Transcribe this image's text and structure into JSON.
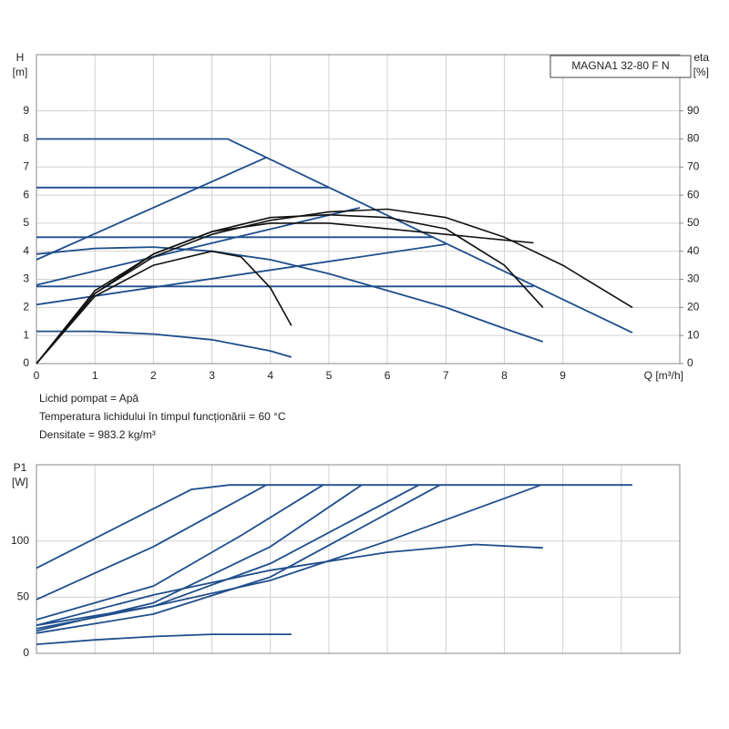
{
  "chart_data": [
    {
      "type": "line",
      "title": "MAGNA1 32-80 F N",
      "ylabel": "H",
      "yunit": "[m]",
      "y2label": "eta",
      "y2unit": "[%]",
      "xlabel": "Q [m³/h]",
      "xlim": [
        0,
        11
      ],
      "ylim": [
        0,
        11
      ],
      "y2lim": [
        0,
        110
      ],
      "xticks": [
        0,
        1,
        2,
        3,
        4,
        5,
        6,
        7,
        8,
        9
      ],
      "yticks": [
        0,
        1,
        2,
        3,
        4,
        5,
        6,
        7,
        8,
        9
      ],
      "y2ticks": [
        0,
        10,
        20,
        30,
        40,
        50,
        60,
        70,
        80,
        90
      ],
      "grid": true,
      "annotations": [
        "Lichid pompat = Apă",
        "Temperatura lichidului în timpul funcționării = 60 °C",
        "Densitate = 983.2 kg/m³"
      ],
      "series": [
        {
          "color": "#1f4e8c",
          "x": [
            0,
            3.27,
            10.19
          ],
          "values": [
            8,
            8,
            1.1
          ]
        },
        {
          "color": "#1f4e8c",
          "x": [
            0,
            5.0
          ],
          "values": [
            6.27,
            6.27
          ]
        },
        {
          "color": "#1f4e8c",
          "x": [
            0,
            6.8
          ],
          "values": [
            4.5,
            4.5
          ]
        },
        {
          "color": "#1f4e8c",
          "x": [
            0,
            8.5
          ],
          "values": [
            2.75,
            2.75
          ]
        },
        {
          "color": "#1f4e8c",
          "x": [
            0,
            3.93
          ],
          "values": [
            3.7,
            7.34
          ]
        },
        {
          "color": "#1f4e8c",
          "x": [
            0,
            5.53
          ],
          "values": [
            2.8,
            5.55
          ]
        },
        {
          "color": "#1f4e8c",
          "x": [
            0,
            7.0
          ],
          "values": [
            2.1,
            4.25
          ]
        },
        {
          "color": "#1f4e8c",
          "x": [
            0,
            1,
            2,
            3,
            4,
            5,
            6,
            7,
            8,
            8.66
          ],
          "values": [
            3.9,
            4.1,
            4.15,
            4.0,
            3.7,
            3.2,
            2.6,
            2.0,
            1.25,
            0.78
          ]
        },
        {
          "color": "#1f4e8c",
          "x": [
            0,
            1,
            2,
            3,
            4,
            4.36
          ],
          "values": [
            1.15,
            1.15,
            1.05,
            0.85,
            0.45,
            0.23
          ]
        },
        {
          "color": "#111111",
          "axis": "y2",
          "x": [
            0,
            1,
            2,
            3,
            4,
            5,
            6,
            7,
            8,
            9,
            10.19
          ],
          "values": [
            0,
            25,
            38,
            46,
            51,
            54,
            55,
            52,
            45,
            35,
            20
          ]
        },
        {
          "color": "#111111",
          "axis": "y2",
          "x": [
            0,
            1,
            2,
            3,
            4,
            5,
            6,
            7,
            8,
            8.66
          ],
          "values": [
            0,
            26,
            39,
            47,
            52,
            53,
            52,
            48,
            35,
            20
          ]
        },
        {
          "color": "#111111",
          "axis": "y2",
          "x": [
            0,
            1,
            2,
            3,
            3.5,
            4,
            4.36
          ],
          "values": [
            0,
            24,
            35,
            40,
            38,
            27,
            13.5
          ]
        },
        {
          "color": "#111111",
          "axis": "y2",
          "x": [
            0,
            1,
            2,
            3,
            4,
            5,
            6,
            7,
            8,
            8.5
          ],
          "values": [
            0,
            25,
            39,
            47,
            50,
            50,
            48,
            46,
            44,
            43
          ]
        }
      ]
    },
    {
      "type": "line",
      "ylabel": "P1",
      "yunit": "[W]",
      "xlim": [
        0,
        11
      ],
      "ylim": [
        0,
        168
      ],
      "xticks": [
        0,
        1,
        2,
        3,
        4,
        5,
        6,
        7,
        8,
        9,
        10
      ],
      "show_xtick_labels": false,
      "yticks": [
        0,
        50,
        100
      ],
      "grid": true,
      "series": [
        {
          "color": "#1f4e8c",
          "x": [
            0,
            2.65,
            3.3,
            10.19
          ],
          "values": [
            76,
            146,
            150,
            150
          ]
        },
        {
          "color": "#1f4e8c",
          "x": [
            0,
            2,
            3.93
          ],
          "values": [
            48,
            95,
            150
          ]
        },
        {
          "color": "#1f4e8c",
          "x": [
            0,
            2,
            3.5,
            4.9
          ],
          "values": [
            30,
            60,
            105,
            150
          ]
        },
        {
          "color": "#1f4e8c",
          "x": [
            0,
            2,
            4,
            5.56
          ],
          "values": [
            20,
            45,
            95,
            150
          ]
        },
        {
          "color": "#1f4e8c",
          "x": [
            0,
            2,
            4,
            6.54
          ],
          "values": [
            22,
            42,
            80,
            150
          ]
        },
        {
          "color": "#1f4e8c",
          "x": [
            0,
            2,
            4,
            6.9
          ],
          "values": [
            18,
            35,
            68,
            150
          ]
        },
        {
          "color": "#1f4e8c",
          "x": [
            0,
            2,
            4,
            6,
            8.63
          ],
          "values": [
            25,
            42,
            65,
            100,
            150
          ]
        },
        {
          "color": "#1f4e8c",
          "x": [
            0,
            2,
            4,
            6,
            7.5,
            8.66
          ],
          "values": [
            25,
            52,
            74,
            90,
            97,
            94
          ]
        },
        {
          "color": "#1f4e8c",
          "x": [
            0,
            1,
            2,
            3,
            4.36
          ],
          "values": [
            8,
            12,
            15,
            17,
            17
          ]
        }
      ]
    }
  ]
}
